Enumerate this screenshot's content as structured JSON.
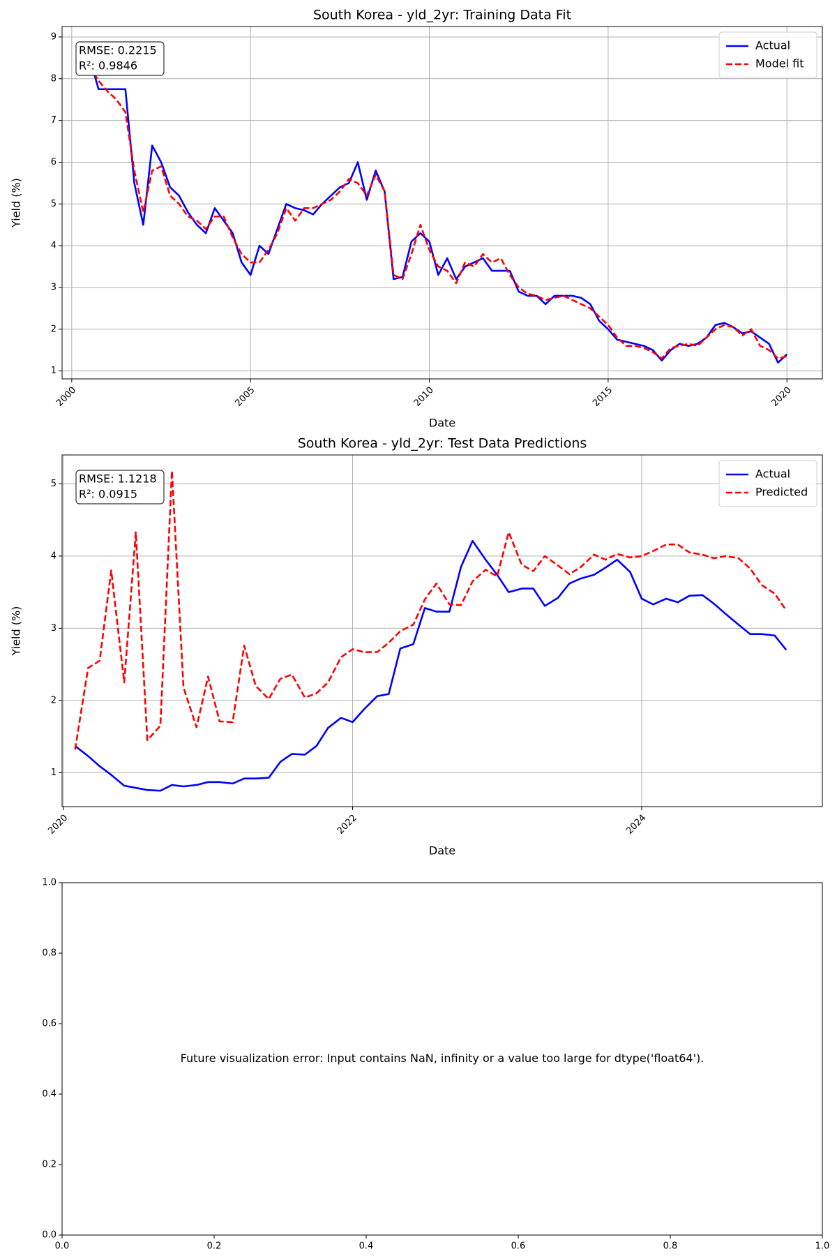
{
  "chart_data": [
    {
      "type": "line",
      "title": "South Korea - yld_2yr: Training Data Fit",
      "xlabel": "Date",
      "ylabel": "Yield (%)",
      "annotation": [
        "RMSE: 0.2215",
        "R²: 0.9846"
      ],
      "grid": true,
      "legend": "upper right",
      "xlim": [
        1999.73,
        2020.99
      ],
      "xticks": [
        2000,
        2005,
        2010,
        2015,
        2020
      ],
      "ylim": [
        0.81,
        9.25
      ],
      "yticks": [
        1,
        2,
        3,
        4,
        5,
        6,
        7,
        8,
        9
      ],
      "x": [
        2000.25,
        2000.5,
        2000.75,
        2001,
        2001.25,
        2001.5,
        2001.75,
        2002,
        2002.25,
        2002.5,
        2002.75,
        2003,
        2003.25,
        2003.5,
        2003.75,
        2004,
        2004.25,
        2004.5,
        2004.75,
        2005,
        2005.25,
        2005.5,
        2005.75,
        2006,
        2006.25,
        2006.5,
        2006.75,
        2007,
        2007.25,
        2007.5,
        2007.75,
        2008,
        2008.25,
        2008.5,
        2008.75,
        2009,
        2009.25,
        2009.5,
        2009.75,
        2010,
        2010.25,
        2010.5,
        2010.75,
        2011,
        2011.25,
        2011.5,
        2011.75,
        2012,
        2012.25,
        2012.5,
        2012.75,
        2013,
        2013.25,
        2013.5,
        2013.75,
        2014,
        2014.25,
        2014.5,
        2014.75,
        2015,
        2015.25,
        2015.5,
        2015.75,
        2016,
        2016.25,
        2016.5,
        2016.75,
        2017,
        2017.25,
        2017.5,
        2017.75,
        2018,
        2018.25,
        2018.5,
        2018.75,
        2019,
        2019.25,
        2019.5,
        2019.75,
        2020
      ],
      "series": [
        {
          "name": "Actual",
          "color": "#0000ff",
          "linestyle": "solid",
          "values": [
            8.8,
            8.5,
            7.75,
            7.75,
            7.75,
            7.75,
            5.5,
            4.5,
            6.4,
            6.0,
            5.4,
            5.2,
            4.8,
            4.5,
            4.3,
            4.9,
            4.6,
            4.3,
            3.6,
            3.3,
            4.0,
            3.8,
            4.4,
            5.0,
            4.9,
            4.85,
            4.75,
            5.0,
            5.2,
            5.4,
            5.5,
            6.0,
            5.1,
            5.8,
            5.3,
            3.2,
            3.25,
            4.1,
            4.3,
            4.1,
            3.3,
            3.7,
            3.2,
            3.5,
            3.6,
            3.7,
            3.4,
            3.4,
            3.4,
            2.9,
            2.8,
            2.8,
            2.6,
            2.8,
            2.8,
            2.8,
            2.75,
            2.6,
            2.2,
            2.0,
            1.75,
            1.7,
            1.65,
            1.6,
            1.5,
            1.25,
            1.5,
            1.65,
            1.6,
            1.65,
            1.8,
            2.1,
            2.15,
            2.05,
            1.9,
            1.95,
            1.8,
            1.65,
            1.2,
            1.4
          ]
        },
        {
          "name": "Model fit",
          "color": "#ff0000",
          "linestyle": "dashed",
          "values": [
            8.7,
            8.3,
            7.95,
            7.7,
            7.5,
            7.2,
            5.8,
            4.8,
            5.8,
            5.9,
            5.2,
            5.0,
            4.7,
            4.6,
            4.4,
            4.7,
            4.7,
            4.2,
            3.8,
            3.6,
            3.6,
            3.9,
            4.3,
            4.9,
            4.6,
            4.9,
            4.9,
            5.0,
            5.1,
            5.3,
            5.6,
            5.5,
            5.2,
            5.7,
            5.3,
            3.3,
            3.2,
            3.8,
            4.5,
            3.9,
            3.5,
            3.4,
            3.1,
            3.6,
            3.5,
            3.8,
            3.6,
            3.7,
            3.3,
            3.0,
            2.85,
            2.8,
            2.7,
            2.75,
            2.8,
            2.7,
            2.6,
            2.5,
            2.3,
            2.1,
            1.8,
            1.6,
            1.6,
            1.55,
            1.45,
            1.3,
            1.55,
            1.6,
            1.65,
            1.6,
            1.8,
            2.0,
            2.1,
            2.05,
            1.85,
            2.0,
            1.6,
            1.5,
            1.3,
            1.35
          ]
        }
      ]
    },
    {
      "type": "line",
      "title": "South Korea - yld_2yr: Test Data Predictions",
      "xlabel": "Date",
      "ylabel": "Yield (%)",
      "annotation": [
        "RMSE: 1.1218",
        "R²: 0.0915"
      ],
      "grid": true,
      "legend": "upper right",
      "xlim": [
        2019.99,
        2025.25
      ],
      "xticks": [
        2020,
        2022,
        2024
      ],
      "ylim": [
        0.53,
        5.4
      ],
      "yticks": [
        1,
        2,
        3,
        4,
        5
      ],
      "x": [
        2020.08,
        2020.17,
        2020.25,
        2020.33,
        2020.42,
        2020.5,
        2020.58,
        2020.67,
        2020.75,
        2020.83,
        2020.92,
        2021,
        2021.08,
        2021.17,
        2021.25,
        2021.33,
        2021.42,
        2021.5,
        2021.58,
        2021.67,
        2021.75,
        2021.83,
        2021.92,
        2022,
        2022.08,
        2022.17,
        2022.25,
        2022.33,
        2022.42,
        2022.5,
        2022.58,
        2022.67,
        2022.75,
        2022.83,
        2022.92,
        2023,
        2023.08,
        2023.17,
        2023.25,
        2023.33,
        2023.42,
        2023.5,
        2023.58,
        2023.67,
        2023.75,
        2023.83,
        2023.92,
        2024,
        2024.08,
        2024.17,
        2024.25,
        2024.33,
        2024.42,
        2024.5,
        2024.58,
        2024.67,
        2024.75,
        2024.83,
        2024.92,
        2025
      ],
      "series": [
        {
          "name": "Actual",
          "color": "#0000ff",
          "linestyle": "solid",
          "values": [
            1.37,
            1.23,
            1.09,
            0.97,
            0.82,
            0.79,
            0.76,
            0.75,
            0.83,
            0.81,
            0.83,
            0.87,
            0.87,
            0.85,
            0.92,
            0.92,
            0.93,
            1.15,
            1.26,
            1.25,
            1.37,
            1.62,
            1.76,
            1.7,
            1.88,
            2.06,
            2.09,
            2.72,
            2.78,
            3.28,
            3.23,
            3.23,
            3.85,
            4.21,
            3.95,
            3.74,
            3.5,
            3.55,
            3.55,
            3.31,
            3.42,
            3.62,
            3.69,
            3.74,
            3.84,
            3.95,
            3.78,
            3.41,
            3.33,
            3.41,
            3.36,
            3.45,
            3.46,
            3.34,
            3.2,
            3.05,
            2.92,
            2.92,
            2.9,
            2.7
          ]
        },
        {
          "name": "Predicted",
          "color": "#ff0000",
          "linestyle": "dashed",
          "values": [
            1.32,
            2.45,
            2.55,
            3.8,
            2.25,
            4.33,
            1.45,
            1.65,
            5.18,
            2.18,
            1.63,
            2.33,
            1.71,
            1.7,
            2.76,
            2.2,
            2.02,
            2.3,
            2.36,
            2.04,
            2.1,
            2.25,
            2.6,
            2.71,
            2.67,
            2.67,
            2.8,
            2.96,
            3.05,
            3.4,
            3.62,
            3.33,
            3.32,
            3.65,
            3.81,
            3.72,
            4.33,
            3.88,
            3.79,
            4.0,
            3.87,
            3.75,
            3.85,
            4.02,
            3.95,
            4.03,
            3.98,
            4.0,
            4.07,
            4.16,
            4.16,
            4.05,
            4.02,
            3.97,
            4.0,
            3.97,
            3.83,
            3.6,
            3.48,
            3.25
          ]
        }
      ]
    },
    {
      "type": "line",
      "message": "Future visualization error: Input contains NaN, infinity or a value too large for dtype('float64').",
      "grid": false,
      "xlim": [
        0,
        1
      ],
      "ylim": [
        0,
        1
      ],
      "xticks": [
        {
          "value": 0,
          "label": "0.0"
        },
        {
          "value": 0.2,
          "label": "0.2"
        },
        {
          "value": 0.4,
          "label": "0.4"
        },
        {
          "value": 0.6,
          "label": "0.6"
        },
        {
          "value": 0.8,
          "label": "0.8"
        },
        {
          "value": 1,
          "label": "1.0"
        }
      ],
      "yticks": [
        {
          "value": 0,
          "label": "0.0"
        },
        {
          "value": 0.2,
          "label": "0.2"
        },
        {
          "value": 0.4,
          "label": "0.4"
        },
        {
          "value": 0.6,
          "label": "0.6"
        },
        {
          "value": 0.8,
          "label": "0.8"
        },
        {
          "value": 1,
          "label": "1.0"
        }
      ]
    }
  ]
}
